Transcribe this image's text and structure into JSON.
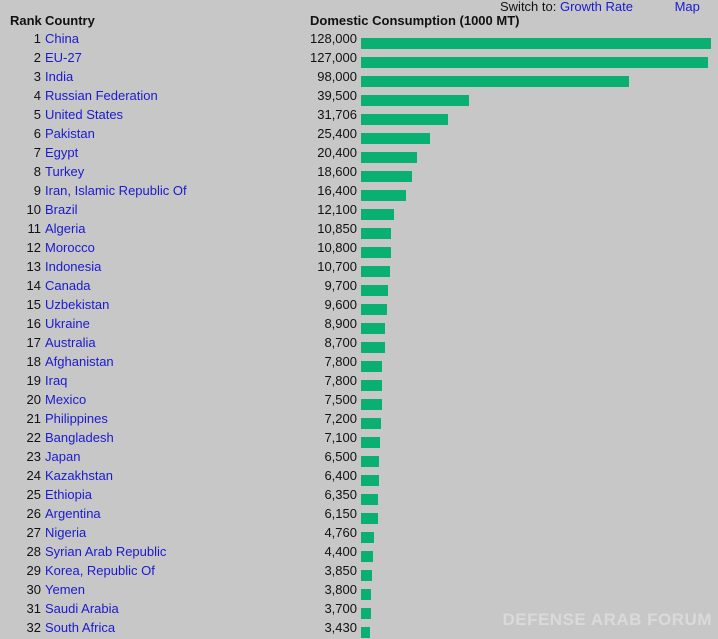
{
  "switch": {
    "label": "Switch to:",
    "growth_rate": "Growth Rate",
    "map": "Map"
  },
  "headers": {
    "rank": "Rank",
    "country": "Country",
    "consumption": "Domestic Consumption (1000 MT)"
  },
  "max_value": 128000,
  "accent": "#0aaf72",
  "rows": [
    {
      "rank": "1",
      "country": "China",
      "value": "128,000",
      "n": 128000
    },
    {
      "rank": "2",
      "country": "EU-27",
      "value": "127,000",
      "n": 127000
    },
    {
      "rank": "3",
      "country": "India",
      "value": "98,000",
      "n": 98000
    },
    {
      "rank": "4",
      "country": "Russian Federation",
      "value": "39,500",
      "n": 39500
    },
    {
      "rank": "5",
      "country": "United States",
      "value": "31,706",
      "n": 31706
    },
    {
      "rank": "6",
      "country": "Pakistan",
      "value": "25,400",
      "n": 25400
    },
    {
      "rank": "7",
      "country": "Egypt",
      "value": "20,400",
      "n": 20400
    },
    {
      "rank": "8",
      "country": "Turkey",
      "value": "18,600",
      "n": 18600
    },
    {
      "rank": "9",
      "country": "Iran, Islamic Republic Of",
      "value": "16,400",
      "n": 16400
    },
    {
      "rank": "10",
      "country": "Brazil",
      "value": "12,100",
      "n": 12100
    },
    {
      "rank": "11",
      "country": "Algeria",
      "value": "10,850",
      "n": 10850
    },
    {
      "rank": "12",
      "country": "Morocco",
      "value": "10,800",
      "n": 10800
    },
    {
      "rank": "13",
      "country": "Indonesia",
      "value": "10,700",
      "n": 10700
    },
    {
      "rank": "14",
      "country": "Canada",
      "value": "9,700",
      "n": 9700
    },
    {
      "rank": "15",
      "country": "Uzbekistan",
      "value": "9,600",
      "n": 9600
    },
    {
      "rank": "16",
      "country": "Ukraine",
      "value": "8,900",
      "n": 8900
    },
    {
      "rank": "17",
      "country": "Australia",
      "value": "8,700",
      "n": 8700
    },
    {
      "rank": "18",
      "country": "Afghanistan",
      "value": "7,800",
      "n": 7800
    },
    {
      "rank": "19",
      "country": "Iraq",
      "value": "7,800",
      "n": 7800
    },
    {
      "rank": "20",
      "country": "Mexico",
      "value": "7,500",
      "n": 7500
    },
    {
      "rank": "21",
      "country": "Philippines",
      "value": "7,200",
      "n": 7200
    },
    {
      "rank": "22",
      "country": "Bangladesh",
      "value": "7,100",
      "n": 7100
    },
    {
      "rank": "23",
      "country": "Japan",
      "value": "6,500",
      "n": 6500
    },
    {
      "rank": "24",
      "country": "Kazakhstan",
      "value": "6,400",
      "n": 6400
    },
    {
      "rank": "25",
      "country": "Ethiopia",
      "value": "6,350",
      "n": 6350
    },
    {
      "rank": "26",
      "country": "Argentina",
      "value": "6,150",
      "n": 6150
    },
    {
      "rank": "27",
      "country": "Nigeria",
      "value": "4,760",
      "n": 4760
    },
    {
      "rank": "28",
      "country": "Syrian Arab Republic",
      "value": "4,400",
      "n": 4400
    },
    {
      "rank": "29",
      "country": "Korea, Republic Of",
      "value": "3,850",
      "n": 3850
    },
    {
      "rank": "30",
      "country": "Yemen",
      "value": "3,800",
      "n": 3800
    },
    {
      "rank": "31",
      "country": "Saudi Arabia",
      "value": "3,700",
      "n": 3700
    },
    {
      "rank": "32",
      "country": "South Africa",
      "value": "3,430",
      "n": 3430
    }
  ],
  "watermark": "DEFENSE ARAB FORUM"
}
